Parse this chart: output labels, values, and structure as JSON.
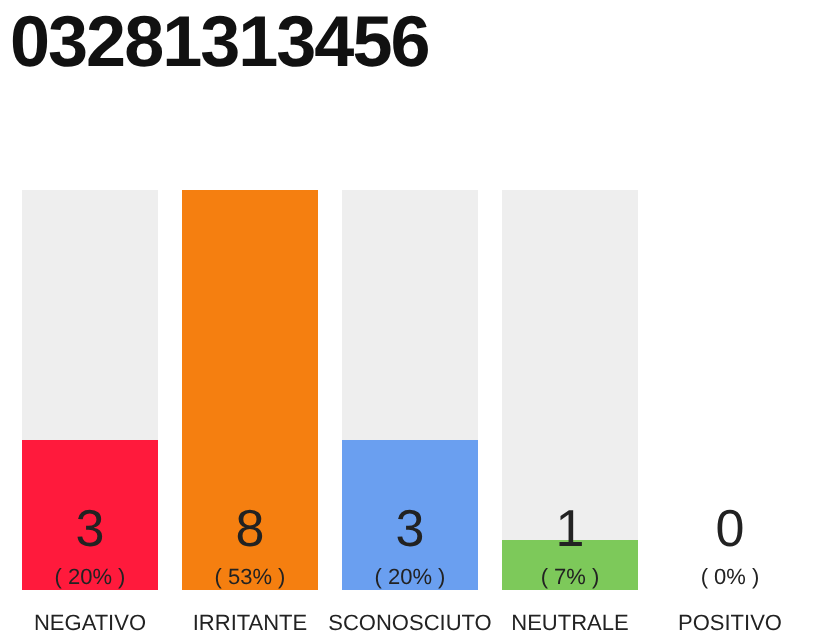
{
  "chart_data": {
    "type": "bar",
    "title": "03281313456",
    "categories": [
      "NEGATIVO",
      "IRRITANTE",
      "SCONOSCIUTO",
      "NEUTRALE",
      "POSITIVO"
    ],
    "values": [
      3,
      8,
      3,
      1,
      0
    ],
    "colors": [
      "#ff1a3c",
      "#f57f10",
      "#6a9ff0",
      "#7dc95a",
      "#bbbbbb"
    ],
    "value_labels": [
      "3",
      "8",
      "3",
      "1",
      "0"
    ],
    "annotations": [
      "( 20% )",
      "( 53% )",
      "( 20% )",
      "( 7% )",
      "( 0% )"
    ]
  }
}
